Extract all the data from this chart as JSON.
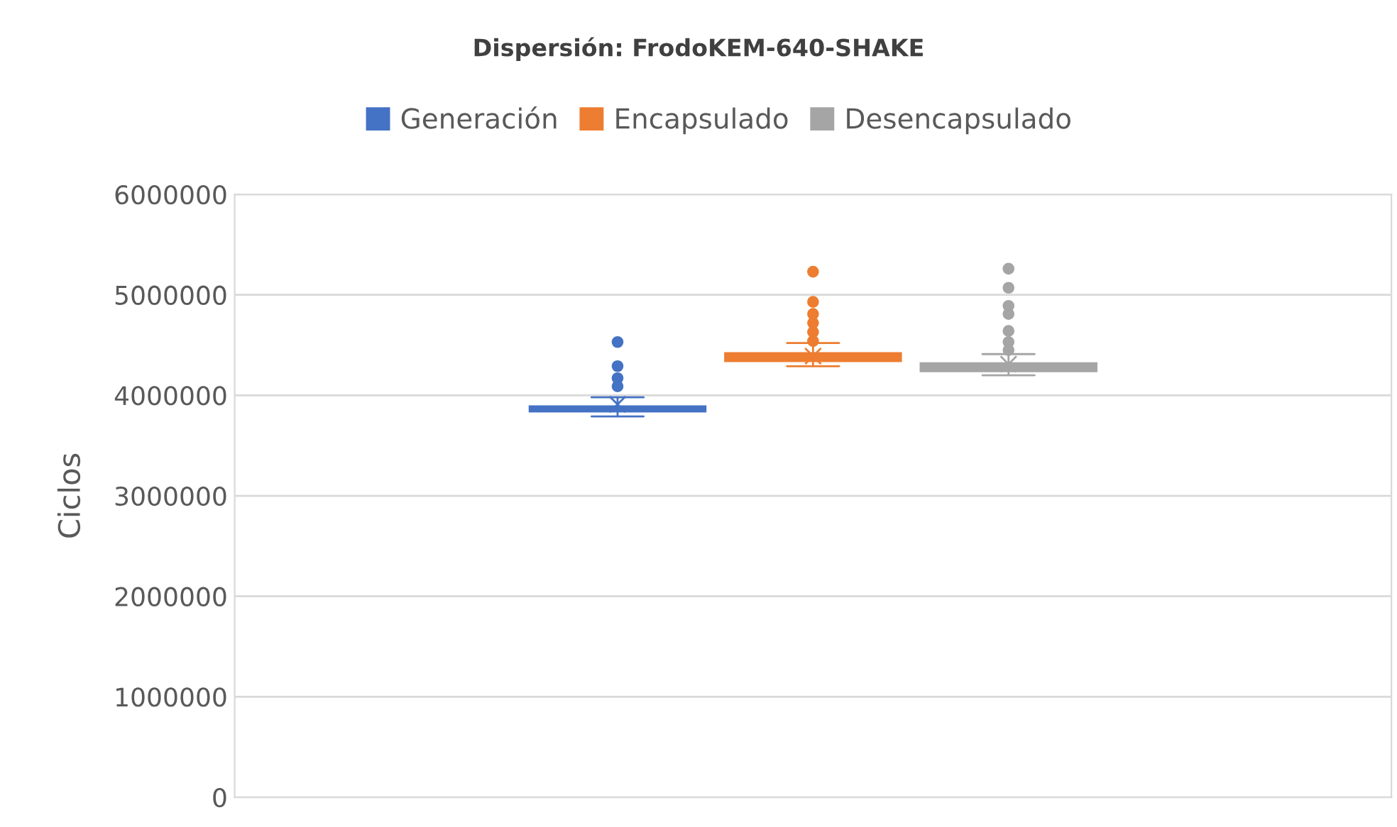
{
  "chart_data": {
    "type": "box",
    "title": "Dispersión: FrodoKEM-640-SHAKE",
    "ylabel": "Ciclos",
    "categories": [
      null
    ],
    "series": [
      {
        "name": "Generación",
        "color": "#4472c4",
        "boxes": [
          {
            "low": 3790000,
            "q1": 3840000,
            "median": 3860000,
            "q3": 3890000,
            "high": 3980000,
            "mean": 3910000,
            "outliers": [
              4530000,
              4290000,
              4170000,
              4090000
            ]
          }
        ]
      },
      {
        "name": "Encapsulado",
        "color": "#ed7d31",
        "boxes": [
          {
            "low": 4290000,
            "q1": 4340000,
            "median": 4380000,
            "q3": 4420000,
            "high": 4520000,
            "mean": 4390000,
            "outliers": [
              5230000,
              4930000,
              4810000,
              4720000,
              4630000,
              4540000
            ]
          }
        ]
      },
      {
        "name": "Desencapsulado",
        "color": "#a5a5a5",
        "boxes": [
          {
            "low": 4200000,
            "q1": 4240000,
            "median": 4280000,
            "q3": 4320000,
            "high": 4410000,
            "mean": 4310000,
            "outliers": [
              5260000,
              5070000,
              4890000,
              4810000,
              4640000,
              4530000,
              4450000
            ]
          }
        ]
      }
    ],
    "ylim": [
      0,
      6000000
    ],
    "yticks": [
      0,
      1000000,
      2000000,
      3000000,
      4000000,
      5000000,
      6000000
    ],
    "grid": "y",
    "legend": "top",
    "marker": "circle"
  }
}
